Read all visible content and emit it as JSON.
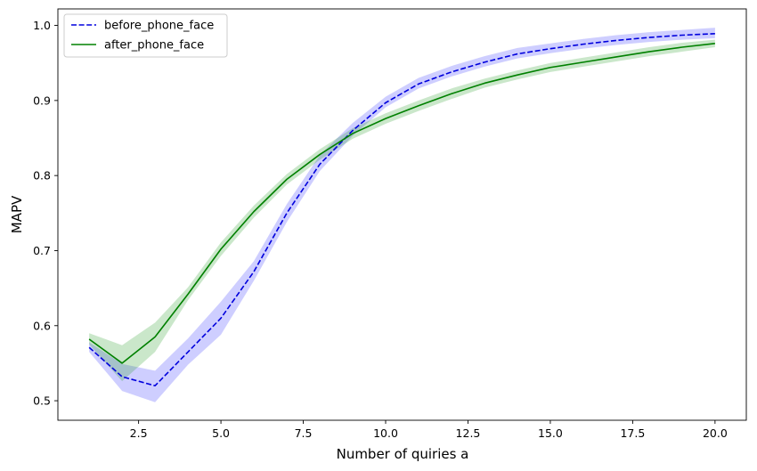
{
  "chart_data": {
    "type": "line",
    "xlabel": "Number of quiries a",
    "ylabel": "MAPV",
    "xlim": [
      0.05,
      20.95
    ],
    "ylim": [
      0.474,
      1.022
    ],
    "xticks": [
      2.5,
      5.0,
      7.5,
      10.0,
      12.5,
      15.0,
      17.5,
      20.0
    ],
    "xtick_labels": [
      "2.5",
      "5.0",
      "7.5",
      "10.0",
      "12.5",
      "15.0",
      "17.5",
      "20.0"
    ],
    "yticks": [
      0.5,
      0.6,
      0.7,
      0.8,
      0.9,
      1.0
    ],
    "ytick_labels": [
      "0.5",
      "0.6",
      "0.7",
      "0.8",
      "0.9",
      "1.0"
    ],
    "grid": false,
    "legend_position": "upper-left",
    "x": [
      1,
      2,
      3,
      4,
      5,
      6,
      7,
      8,
      9,
      10,
      11,
      12,
      13,
      14,
      15,
      16,
      17,
      18,
      19,
      20
    ],
    "series": [
      {
        "name": "before_phone_face",
        "color": "#0000dd",
        "band_color": "#3b3bff",
        "line_style": "dashed",
        "values": [
          0.571,
          0.532,
          0.52,
          0.565,
          0.61,
          0.672,
          0.75,
          0.815,
          0.86,
          0.897,
          0.922,
          0.938,
          0.951,
          0.962,
          0.969,
          0.975,
          0.98,
          0.984,
          0.987,
          0.989
        ],
        "lower": [
          0.565,
          0.513,
          0.498,
          0.548,
          0.588,
          0.66,
          0.738,
          0.806,
          0.853,
          0.891,
          0.916,
          0.932,
          0.945,
          0.956,
          0.963,
          0.969,
          0.974,
          0.978,
          0.981,
          0.983
        ],
        "upper": [
          0.578,
          0.549,
          0.54,
          0.583,
          0.632,
          0.686,
          0.762,
          0.827,
          0.87,
          0.905,
          0.93,
          0.946,
          0.959,
          0.97,
          0.976,
          0.982,
          0.987,
          0.991,
          0.994,
          0.997
        ]
      },
      {
        "name": "after_phone_face",
        "color": "#008000",
        "band_color": "#2ca02c",
        "line_style": "solid",
        "values": [
          0.582,
          0.55,
          0.585,
          0.642,
          0.702,
          0.752,
          0.795,
          0.828,
          0.856,
          0.876,
          0.893,
          0.909,
          0.923,
          0.934,
          0.944,
          0.951,
          0.958,
          0.965,
          0.971,
          0.976
        ],
        "lower": [
          0.575,
          0.526,
          0.565,
          0.634,
          0.693,
          0.744,
          0.788,
          0.821,
          0.849,
          0.869,
          0.886,
          0.902,
          0.917,
          0.928,
          0.938,
          0.945,
          0.952,
          0.959,
          0.965,
          0.971
        ],
        "upper": [
          0.59,
          0.574,
          0.604,
          0.651,
          0.711,
          0.76,
          0.802,
          0.835,
          0.863,
          0.883,
          0.9,
          0.916,
          0.929,
          0.94,
          0.95,
          0.957,
          0.964,
          0.971,
          0.977,
          0.981
        ]
      }
    ]
  }
}
